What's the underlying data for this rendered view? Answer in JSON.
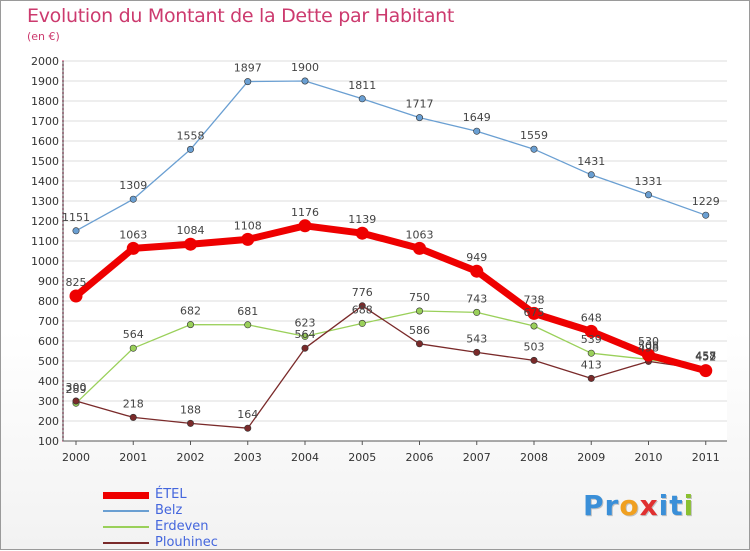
{
  "title": "Evolution du Montant de la Dette par Habitant",
  "subtitle": "(en €)",
  "logo": {
    "text": "Proxiti",
    "letters": [
      {
        "ch": "P",
        "color": "#3a8fd8"
      },
      {
        "ch": "r",
        "color": "#3a8fd8"
      },
      {
        "ch": "o",
        "color": "#f0a020"
      },
      {
        "ch": "x",
        "color": "#e03030"
      },
      {
        "ch": "i",
        "color": "#3a8fd8"
      },
      {
        "ch": "t",
        "color": "#3a8fd8"
      },
      {
        "ch": "i",
        "color": "#8ac030"
      }
    ]
  },
  "chart_data": {
    "type": "line",
    "title": "Evolution du Montant de la Dette par Habitant",
    "subtitle": "(en €)",
    "xlabel": "",
    "ylabel": "",
    "ylim": [
      100,
      2000
    ],
    "yticks": [
      100,
      200,
      300,
      400,
      500,
      600,
      700,
      800,
      900,
      1000,
      1100,
      1200,
      1300,
      1400,
      1500,
      1600,
      1700,
      1800,
      1900,
      2000
    ],
    "categories": [
      "2000",
      "2001",
      "2002",
      "2003",
      "2004",
      "2005",
      "2006",
      "2007",
      "2008",
      "2009",
      "2010",
      "2011"
    ],
    "grid": "horizontal",
    "legend": "bottom-left",
    "series": [
      {
        "name": "Belz",
        "color": "#6a9fd2",
        "values": [
          1151,
          1309,
          1558,
          1897,
          1900,
          1811,
          1717,
          1649,
          1559,
          1431,
          1331,
          1229
        ]
      },
      {
        "name": "Erdeven",
        "color": "#9ad05a",
        "values": [
          289,
          564,
          682,
          681,
          623,
          688,
          750,
          743,
          675,
          539,
          508,
          458
        ]
      },
      {
        "name": "Plouhinec",
        "color": "#7a2a2a",
        "values": [
          300,
          218,
          188,
          164,
          564,
          776,
          586,
          543,
          503,
          413,
          498,
          457
        ]
      },
      {
        "name": "ÉTEL",
        "color": "#ee0000",
        "values": [
          825,
          1063,
          1084,
          1108,
          1176,
          1139,
          1063,
          949,
          738,
          648,
          530,
          452
        ]
      }
    ],
    "legend_order": [
      "ÉTEL",
      "Belz",
      "Erdeven",
      "Plouhinec"
    ]
  }
}
